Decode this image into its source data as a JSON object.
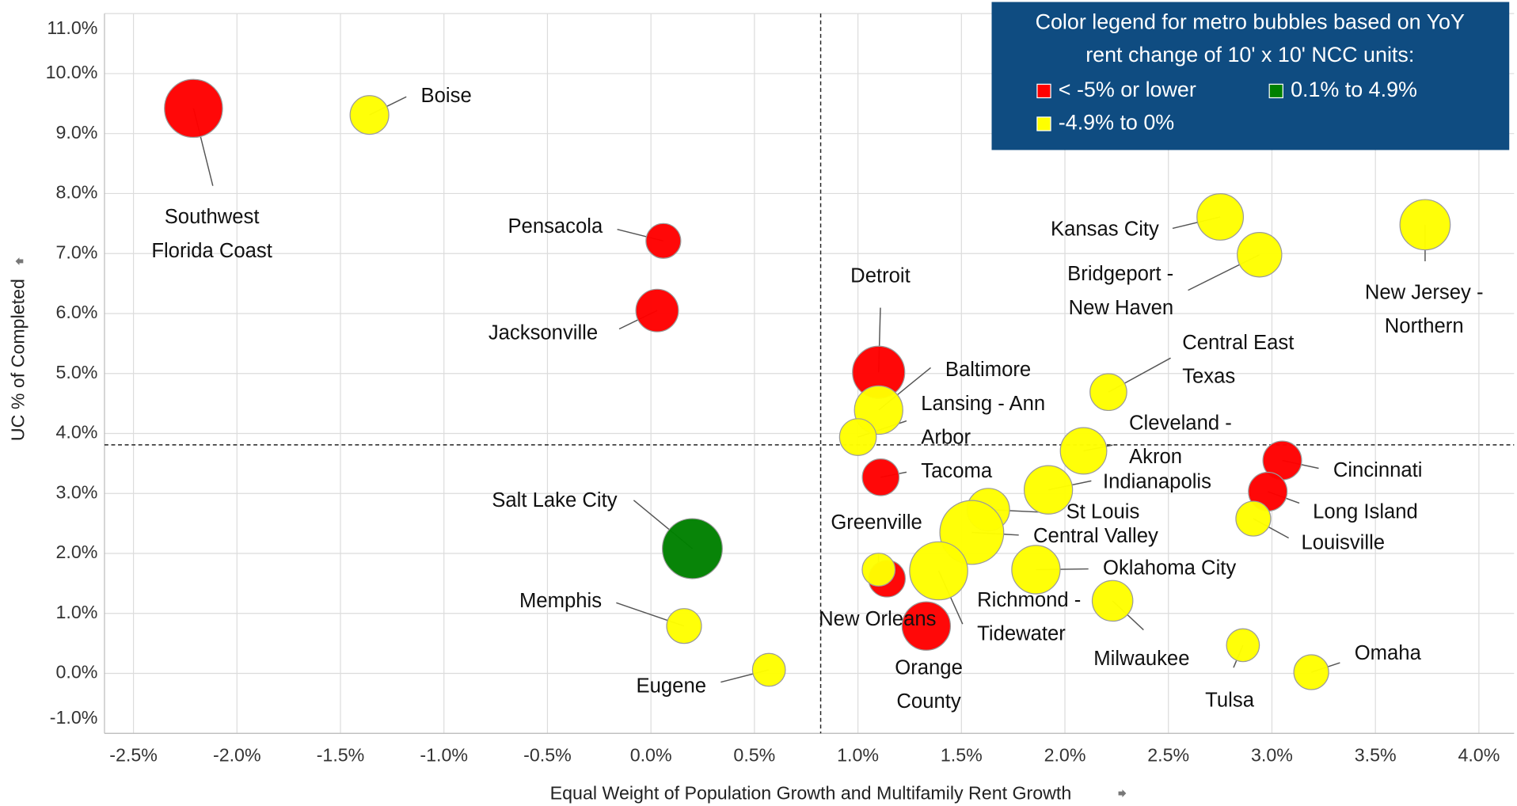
{
  "chart_data": {
    "type": "scatter",
    "legend_title": "Color legend for metro bubbles based on YoY rent change of 10' x 10' NCC units:",
    "x_label": "Equal Weight of Population Growth and Multifamily Rent Growth",
    "y_label": "UC % of Completed",
    "xlim": [
      -2.64,
      4.17
    ],
    "ylim": [
      -1,
      11
    ],
    "xticks": [
      {
        "value": -2.5,
        "label": "-2.5%"
      },
      {
        "value": -2.0,
        "label": "-2.0%"
      },
      {
        "value": -1.5,
        "label": "-1.5%"
      },
      {
        "value": -1.0,
        "label": "-1.0%"
      },
      {
        "value": -0.5,
        "label": "-0.5%"
      },
      {
        "value": 0,
        "label": "0.0%"
      },
      {
        "value": 0.5,
        "label": "0.5%"
      },
      {
        "value": 1.0,
        "label": "1.0%"
      },
      {
        "value": 1.5,
        "label": "1.5%"
      },
      {
        "value": 2.0,
        "label": "2.0%"
      },
      {
        "value": 2.5,
        "label": "2.5%"
      },
      {
        "value": 3.0,
        "label": "3.0%"
      },
      {
        "value": 3.5,
        "label": "3.5%"
      },
      {
        "value": 4.0,
        "label": "4.0%"
      }
    ],
    "yticks": [
      {
        "value": -1,
        "label": "-1.0%"
      },
      {
        "value": 0,
        "label": "0.0%"
      },
      {
        "value": 1,
        "label": "1.0%"
      },
      {
        "value": 2,
        "label": "2.0%"
      },
      {
        "value": 3,
        "label": "3.0%"
      },
      {
        "value": 4,
        "label": "4.0%"
      },
      {
        "value": 5,
        "label": "5.0%"
      },
      {
        "value": 6,
        "label": "6.0%"
      },
      {
        "value": 7,
        "label": "7.0%"
      },
      {
        "value": 8,
        "label": "8.0%"
      },
      {
        "value": 9,
        "label": "9.0%"
      },
      {
        "value": 10,
        "label": "10.0%"
      },
      {
        "value": 11,
        "label": "11.0%"
      }
    ],
    "grid": true,
    "reference_lines": {
      "x": 0.82,
      "y": 3.81
    },
    "series": [
      {
        "name": "< -5% or lower",
        "color": "#ff0000",
        "labels": [
          "Southwest Florida Coast",
          "Pensacola",
          "Jacksonville",
          "Detroit",
          "Tacoma",
          "New Orleans",
          "Orange County",
          "Cincinnati",
          "Long Island"
        ],
        "x": [
          -2.21,
          0.06,
          0.03,
          1.1,
          1.11,
          1.14,
          1.33,
          3.05,
          2.98
        ],
        "values": [
          9.42,
          7.21,
          6.05,
          5.02,
          3.27,
          1.58,
          0.79,
          3.55,
          3.03
        ],
        "sizes": [
          30,
          18,
          22,
          27,
          19,
          19,
          25,
          20,
          20
        ]
      },
      {
        "name": "0.1% to 4.9%",
        "color": "#008000",
        "labels": [
          "Salt Lake City"
        ],
        "x": [
          0.2
        ],
        "values": [
          2.08
        ],
        "sizes": [
          31
        ]
      },
      {
        "name": "-4.9% to 0%",
        "color": "#ffff00",
        "labels": [
          "Boise",
          "Kansas City",
          "Bridgeport - New Haven",
          "New Jersey - Northern",
          "Central East Texas",
          "Baltimore",
          "Lansing - Ann Arbor",
          "Cleveland - Akron",
          "Indianapolis",
          "St Louis",
          "Central Valley",
          "Greenville",
          "Richmond - Tidewater",
          "Oklahoma City",
          "Milwaukee",
          "Louisville",
          "Memphis",
          "Eugene",
          "Tulsa",
          "Omaha"
        ],
        "x": [
          -1.36,
          2.75,
          2.94,
          3.74,
          2.21,
          1.1,
          1.0,
          2.09,
          1.92,
          1.63,
          1.55,
          1.1,
          1.39,
          1.86,
          2.23,
          2.91,
          0.16,
          0.57,
          2.86,
          3.19
        ],
        "values": [
          9.31,
          7.61,
          6.98,
          7.48,
          4.69,
          4.39,
          3.94,
          3.71,
          3.06,
          2.73,
          2.35,
          1.73,
          1.71,
          1.73,
          1.21,
          2.58,
          0.79,
          0.06,
          0.47,
          0.02
        ],
        "sizes": [
          20,
          24,
          23,
          26,
          19,
          25,
          19,
          24,
          25,
          22,
          33,
          17,
          30,
          25,
          21,
          18,
          18,
          17,
          17,
          18
        ]
      }
    ]
  }
}
